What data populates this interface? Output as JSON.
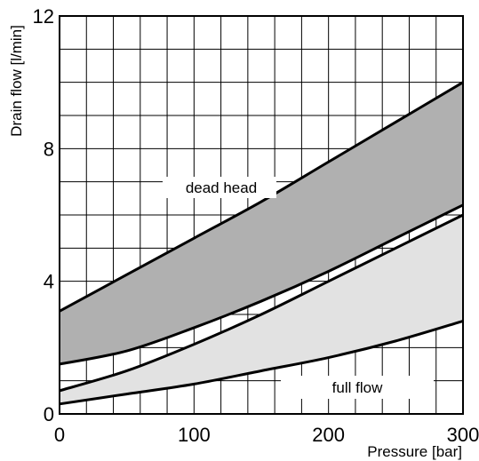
{
  "chart_data": {
    "type": "area",
    "title": "",
    "xlabel": "Pressure [bar]",
    "ylabel": "Drain flow [l/min]",
    "xlim": [
      0,
      300
    ],
    "ylim": [
      0,
      12
    ],
    "xticks": [
      "0",
      "100",
      "200",
      "300"
    ],
    "yticks": [
      "0",
      "4",
      "8",
      "12"
    ],
    "x_grid_step": 20,
    "y_grid_step": 1,
    "grid": true,
    "series": [
      {
        "name": "dead head",
        "color": "#b0b0b0",
        "x": [
          0,
          50,
          100,
          150,
          200,
          250,
          300
        ],
        "upper": [
          3.1,
          4.2,
          5.3,
          6.4,
          7.6,
          8.8,
          10.0
        ],
        "lower": [
          1.5,
          1.9,
          2.6,
          3.4,
          4.3,
          5.3,
          6.3
        ]
      },
      {
        "name": "full flow",
        "color": "#e2e2e2",
        "x": [
          0,
          50,
          100,
          150,
          200,
          250,
          300
        ],
        "upper": [
          0.7,
          1.3,
          2.1,
          3.0,
          4.0,
          5.0,
          6.0
        ],
        "lower": [
          0.3,
          0.6,
          0.9,
          1.3,
          1.7,
          2.2,
          2.8
        ]
      }
    ]
  }
}
